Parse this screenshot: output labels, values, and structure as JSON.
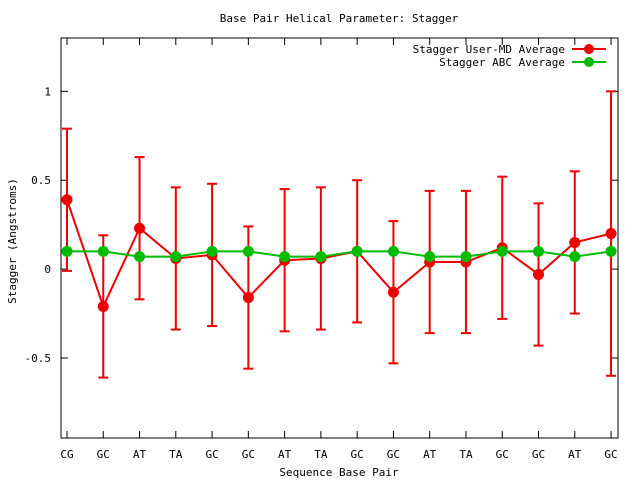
{
  "chart_data": {
    "type": "line",
    "title": "Base Pair Helical Parameter: Stagger",
    "xlabel": "Sequence Base Pair",
    "ylabel": "Stagger (Angstroms)",
    "categories": [
      "CG",
      "GC",
      "AT",
      "TA",
      "GC",
      "GC",
      "AT",
      "TA",
      "GC",
      "GC",
      "AT",
      "TA",
      "GC",
      "GC",
      "AT",
      "GC"
    ],
    "ylim": [
      -0.95,
      1.3
    ],
    "yticks": [
      -0.5,
      0,
      0.5,
      1
    ],
    "ytick_labels": [
      "-0.5",
      "0",
      "0.5",
      "1"
    ],
    "grid": false,
    "legend_position": "top-right",
    "series": [
      {
        "name": "Stagger User-MD Average",
        "color": "#ee0000",
        "values": [
          0.39,
          -0.21,
          0.23,
          0.06,
          0.08,
          -0.16,
          0.05,
          0.06,
          0.1,
          -0.13,
          0.04,
          0.04,
          0.12,
          -0.03,
          0.15,
          0.2
        ],
        "error": [
          0.4,
          0.4,
          0.4,
          0.4,
          0.4,
          0.4,
          0.4,
          0.4,
          0.4,
          0.4,
          0.4,
          0.4,
          0.4,
          0.4,
          0.4,
          0.8
        ]
      },
      {
        "name": "Stagger ABC Average",
        "color": "#00bb00",
        "values": [
          0.1,
          0.1,
          0.07,
          0.07,
          0.1,
          0.1,
          0.07,
          0.07,
          0.1,
          0.1,
          0.07,
          0.07,
          0.1,
          0.1,
          0.07,
          0.1
        ]
      }
    ]
  }
}
